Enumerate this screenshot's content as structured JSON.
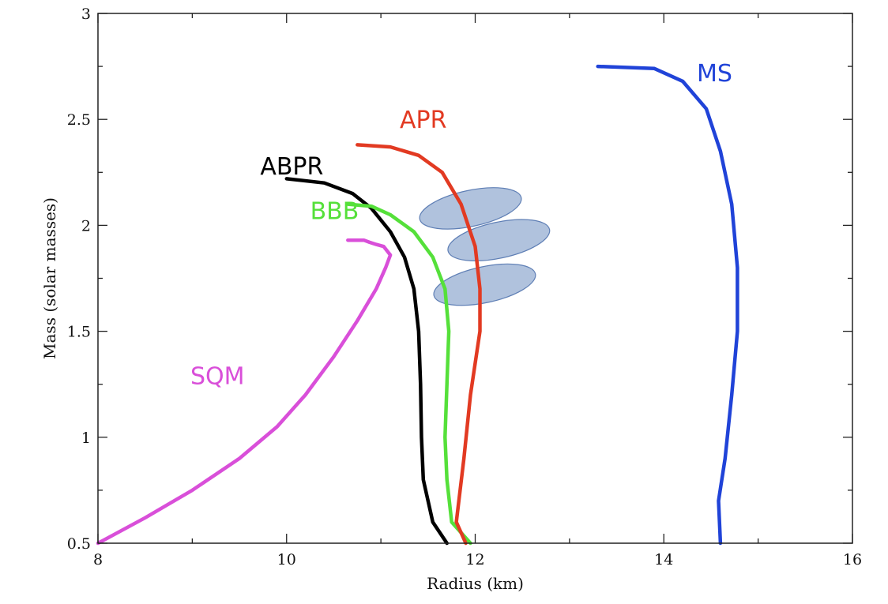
{
  "chart_data": {
    "type": "line",
    "title": "",
    "xlabel": "Radius (km)",
    "ylabel": "Mass (solar masses)",
    "xlim": [
      8,
      16
    ],
    "ylim": [
      0.5,
      3
    ],
    "xticks": [
      8,
      10,
      12,
      14,
      16
    ],
    "xtick_labels": [
      "8",
      "10",
      "12",
      "14",
      "16"
    ],
    "yticks": [
      0.5,
      1,
      1.5,
      2,
      2.5,
      3
    ],
    "ytick_labels": [
      "0.5",
      "1",
      "1.5",
      "2",
      "2.5",
      "3"
    ],
    "grid": false,
    "legend": "none",
    "series": [
      {
        "name": "SQM",
        "color": "#d94fd9",
        "label_at": [
          8.98,
          1.25
        ],
        "points": [
          [
            8.0,
            0.5
          ],
          [
            8.5,
            0.62
          ],
          [
            9.0,
            0.75
          ],
          [
            9.5,
            0.9
          ],
          [
            9.9,
            1.05
          ],
          [
            10.2,
            1.2
          ],
          [
            10.5,
            1.38
          ],
          [
            10.75,
            1.55
          ],
          [
            10.95,
            1.7
          ],
          [
            11.05,
            1.8
          ],
          [
            11.1,
            1.86
          ],
          [
            11.03,
            1.9
          ],
          [
            10.95,
            1.91
          ],
          [
            10.88,
            1.92
          ],
          [
            10.82,
            1.93
          ],
          [
            10.65,
            1.93
          ]
        ]
      },
      {
        "name": "ABPR",
        "color": "#000000",
        "label_at": [
          9.72,
          2.24
        ],
        "points": [
          [
            11.7,
            0.5
          ],
          [
            11.55,
            0.6
          ],
          [
            11.45,
            0.8
          ],
          [
            11.43,
            1.0
          ],
          [
            11.42,
            1.25
          ],
          [
            11.4,
            1.5
          ],
          [
            11.35,
            1.7
          ],
          [
            11.25,
            1.85
          ],
          [
            11.1,
            1.97
          ],
          [
            10.9,
            2.08
          ],
          [
            10.7,
            2.15
          ],
          [
            10.4,
            2.2
          ],
          [
            10.0,
            2.22
          ]
        ]
      },
      {
        "name": "BBB",
        "color": "#55e03a",
        "label_at": [
          10.25,
          2.03
        ],
        "points": [
          [
            11.95,
            0.5
          ],
          [
            11.75,
            0.6
          ],
          [
            11.7,
            0.8
          ],
          [
            11.68,
            1.0
          ],
          [
            11.7,
            1.25
          ],
          [
            11.72,
            1.5
          ],
          [
            11.68,
            1.7
          ],
          [
            11.55,
            1.85
          ],
          [
            11.35,
            1.97
          ],
          [
            11.1,
            2.05
          ],
          [
            10.9,
            2.09
          ],
          [
            10.65,
            2.1
          ]
        ]
      },
      {
        "name": "APR",
        "color": "#e23a22",
        "label_at": [
          11.2,
          2.46
        ],
        "points": [
          [
            11.9,
            0.5
          ],
          [
            11.8,
            0.6
          ],
          [
            11.88,
            0.9
          ],
          [
            11.95,
            1.2
          ],
          [
            12.05,
            1.5
          ],
          [
            12.05,
            1.7
          ],
          [
            12.0,
            1.9
          ],
          [
            11.85,
            2.1
          ],
          [
            11.65,
            2.25
          ],
          [
            11.4,
            2.33
          ],
          [
            11.1,
            2.37
          ],
          [
            10.75,
            2.38
          ]
        ]
      },
      {
        "name": "MS",
        "color": "#2043d8",
        "label_at": [
          14.35,
          2.68
        ],
        "points": [
          [
            14.6,
            0.5
          ],
          [
            14.58,
            0.7
          ],
          [
            14.65,
            0.9
          ],
          [
            14.72,
            1.2
          ],
          [
            14.78,
            1.5
          ],
          [
            14.78,
            1.8
          ],
          [
            14.72,
            2.1
          ],
          [
            14.6,
            2.35
          ],
          [
            14.45,
            2.55
          ],
          [
            14.2,
            2.68
          ],
          [
            13.9,
            2.74
          ],
          [
            13.3,
            2.75
          ]
        ]
      }
    ],
    "shapes": [
      {
        "type": "ellipse",
        "cx": 11.95,
        "cy": 2.08,
        "rx": 0.55,
        "ry": 0.085,
        "angle_deg": -12,
        "color": "#7f9cc8"
      },
      {
        "type": "ellipse",
        "cx": 12.25,
        "cy": 1.93,
        "rx": 0.55,
        "ry": 0.085,
        "angle_deg": -12,
        "color": "#7f9cc8"
      },
      {
        "type": "ellipse",
        "cx": 12.1,
        "cy": 1.72,
        "rx": 0.55,
        "ry": 0.085,
        "angle_deg": -12,
        "color": "#7f9cc8"
      }
    ]
  }
}
